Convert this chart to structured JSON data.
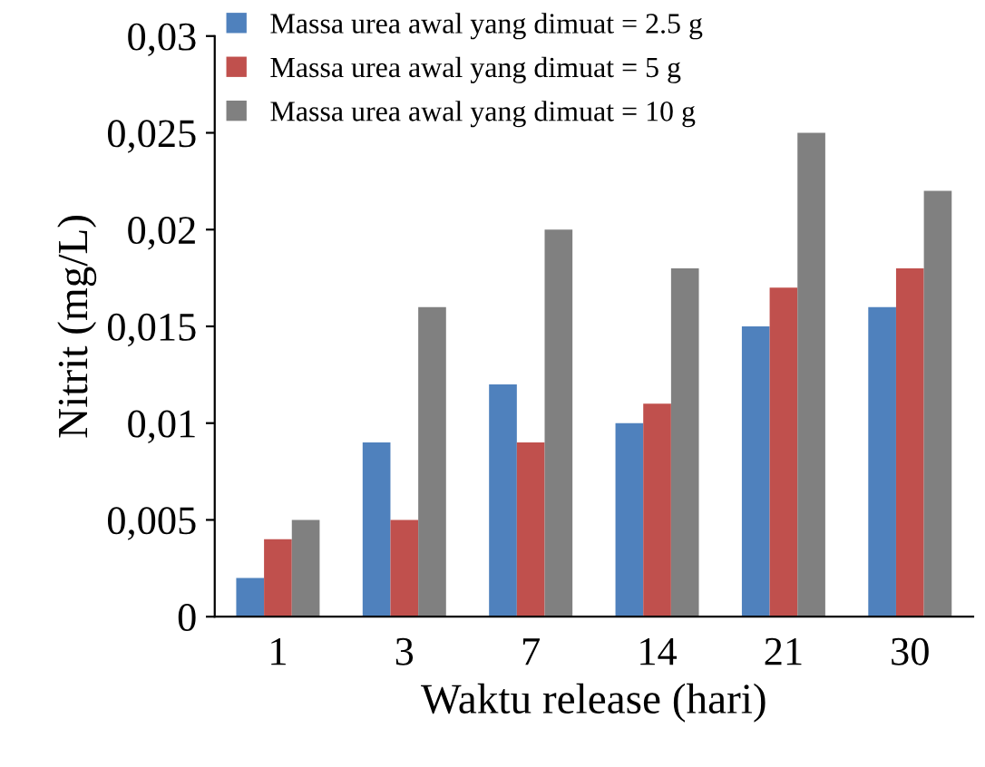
{
  "chart_data": {
    "type": "bar",
    "xlabel": "Waktu release (hari)",
    "ylabel": "Nitrit (mg/L)",
    "categories": [
      "1",
      "3",
      "7",
      "14",
      "21",
      "30"
    ],
    "series": [
      {
        "name": "Massa urea awal yang dimuat = 2.5 g",
        "color": "#4f81bd",
        "values": [
          0.002,
          0.009,
          0.012,
          0.01,
          0.015,
          0.016
        ]
      },
      {
        "name": "Massa urea awal yang dimuat = 5 g",
        "color": "#c0504d",
        "values": [
          0.004,
          0.005,
          0.009,
          0.011,
          0.017,
          0.018
        ]
      },
      {
        "name": "Massa urea awal yang dimuat = 10 g",
        "color": "#808080",
        "values": [
          0.005,
          0.016,
          0.02,
          0.018,
          0.025,
          0.022
        ]
      }
    ],
    "ylim": [
      0,
      0.03
    ],
    "yticks": [
      0,
      {
        "value": 0.005,
        "label": "0,005"
      },
      {
        "value": 0.01,
        "label": "0,01"
      },
      {
        "value": 0.015,
        "label": "0,015"
      },
      {
        "value": 0.02,
        "label": "0,02"
      },
      {
        "value": 0.025,
        "label": "0,025"
      },
      {
        "value": 0.03,
        "label": "0,03"
      }
    ],
    "grid": false,
    "legend": "top left"
  }
}
